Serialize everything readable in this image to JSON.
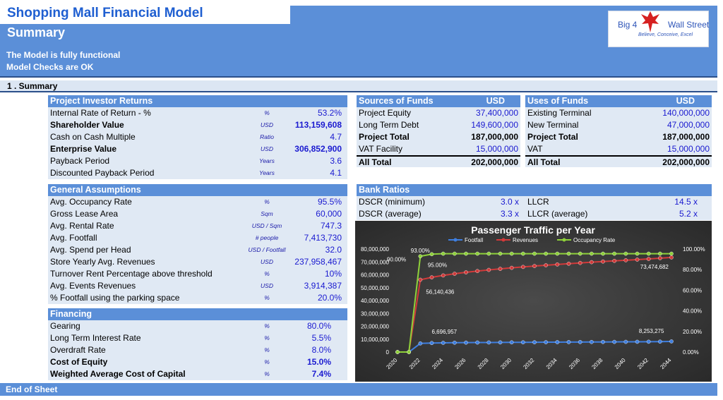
{
  "header": {
    "title": "Shopping Mall Financial Model",
    "subtitle": "Summary",
    "status_line1": "The Model is fully functional",
    "status_line2": "Model Checks are OK",
    "logo_left": "Big 4",
    "logo_right": "Wall Street",
    "logo_tagline": "Believe, Conceive, Excel"
  },
  "section": {
    "title": "1 . Summary"
  },
  "investor_returns": {
    "title": "Project Investor Returns",
    "rows": [
      {
        "label": "Internal Rate of Return - %",
        "unit": "%",
        "value": "53.2%",
        "bold": false
      },
      {
        "label": "Shareholder Value",
        "unit": "USD",
        "value": "113,159,608",
        "bold": true
      },
      {
        "label": "Cash on Cash Multiple",
        "unit": "Ratio",
        "value": "4.7",
        "bold": false
      },
      {
        "label": "Enterprise Value",
        "unit": "USD",
        "value": "306,852,900",
        "bold": true
      },
      {
        "label": "Payback Period",
        "unit": "Years",
        "value": "3.6",
        "bold": false
      },
      {
        "label": "Discounted Payback Period",
        "unit": "Years",
        "value": "4.1",
        "bold": false
      }
    ]
  },
  "general_assumptions": {
    "title": "General Assumptions",
    "rows": [
      {
        "label": "Avg. Occupancy Rate",
        "unit": "%",
        "value": "95.5%"
      },
      {
        "label": "Gross Lease Area",
        "unit": "Sqm",
        "value": "60,000"
      },
      {
        "label": "Avg. Rental Rate",
        "unit": "USD / Sqm",
        "value": "747.3"
      },
      {
        "label": "Avg. Footfall",
        "unit": "# people",
        "value": "7,413,730"
      },
      {
        "label": "Avg. Spend per Head",
        "unit": "USD / Footfall",
        "value": "32.0"
      },
      {
        "label": "Store Yearly Avg. Revenues",
        "unit": "USD",
        "value": "237,958,467"
      },
      {
        "label": "Turnover Rent Percentage above threshold",
        "unit": "%",
        "value": "10%"
      },
      {
        "label": "Avg. Events Revenues",
        "unit": "USD",
        "value": "3,914,387"
      },
      {
        "label": "% Footfall using the parking space",
        "unit": "%",
        "value": "20.0%"
      }
    ]
  },
  "financing": {
    "title": "Financing",
    "rows": [
      {
        "label": "Gearing",
        "unit": "%",
        "value": "80.0%",
        "bold": false
      },
      {
        "label": "Long Term Interest Rate",
        "unit": "%",
        "value": "5.5%",
        "bold": false
      },
      {
        "label": "Overdraft Rate",
        "unit": "%",
        "value": "8.0%",
        "bold": false
      },
      {
        "label": "Cost of Equity",
        "unit": "%",
        "value": "15.0%",
        "bold": true
      },
      {
        "label": "Weighted Average Cost of Capital",
        "unit": "%",
        "value": "7.4%",
        "bold": true
      }
    ]
  },
  "sources": {
    "title": "Sources of Funds",
    "currency": "USD",
    "rows": [
      {
        "label": "Project Equity",
        "value": "37,400,000",
        "bold": false
      },
      {
        "label": "Long Term Debt",
        "value": "149,600,000",
        "bold": false
      },
      {
        "label": "Project Total",
        "value": "187,000,000",
        "bold": true
      },
      {
        "label": "VAT Facility",
        "value": "15,000,000",
        "bold": false
      }
    ],
    "total_label": "All Total",
    "total_value": "202,000,000"
  },
  "uses": {
    "title": "Uses of Funds",
    "currency": "USD",
    "rows": [
      {
        "label": "Existing Terminal",
        "value": "140,000,000",
        "bold": false
      },
      {
        "label": "New Terminal",
        "value": "47,000,000",
        "bold": false
      },
      {
        "label": "Project Total",
        "value": "187,000,000",
        "bold": true
      },
      {
        "label": "VAT",
        "value": "15,000,000",
        "bold": false
      }
    ],
    "total_label": "All Total",
    "total_value": "202,000,000"
  },
  "bank_ratios": {
    "title": "Bank Ratios",
    "rows": [
      {
        "label": "DSCR (minimum)",
        "value": "3.0 x",
        "label2": "LLCR",
        "value2": "14.5 x"
      },
      {
        "label": "DSCR (average)",
        "value": "3.3 x",
        "label2": "LLCR (average)",
        "value2": "5.2 x"
      }
    ]
  },
  "chart_data": {
    "type": "line",
    "title": "Passenger Traffic per Year",
    "x": [
      2020,
      2021,
      2022,
      2023,
      2024,
      2025,
      2026,
      2027,
      2028,
      2029,
      2030,
      2031,
      2032,
      2033,
      2034,
      2035,
      2036,
      2037,
      2038,
      2039,
      2040,
      2041,
      2042,
      2043,
      2044
    ],
    "x_tick_labels": [
      "2020",
      "2022",
      "2024",
      "2026",
      "2028",
      "2030",
      "2032",
      "2034",
      "2036",
      "2038",
      "2040",
      "2042",
      "2044"
    ],
    "y_left_ticks": [
      "0",
      "10,000,000",
      "20,000,000",
      "30,000,000",
      "40,000,000",
      "50,000,000",
      "60,000,000",
      "70,000,000",
      "80,000,000"
    ],
    "y_right_ticks": [
      "0.00%",
      "20.00%",
      "40.00%",
      "60.00%",
      "80.00%",
      "100.00%"
    ],
    "ylim_left": [
      0,
      80000000
    ],
    "ylim_right": [
      0,
      1.0
    ],
    "legend_position": "top",
    "series": [
      {
        "name": "Footfall",
        "axis": "left",
        "color": "#3f7fe0",
        "values": [
          0,
          0,
          6696957,
          7000000,
          7150000,
          7250000,
          7320000,
          7380000,
          7430000,
          7480000,
          7520000,
          7560000,
          7600000,
          7640000,
          7680000,
          7720000,
          7760000,
          7800000,
          7840000,
          7880000,
          7920000,
          7970000,
          8020000,
          8100000,
          8253275
        ]
      },
      {
        "name": "Revenues",
        "axis": "left",
        "color": "#d23a3a",
        "values": [
          0,
          0,
          56140436,
          58000000,
          59500000,
          60800000,
          61900000,
          62900000,
          63800000,
          64600000,
          65400000,
          66100000,
          66800000,
          67400000,
          68000000,
          68600000,
          69200000,
          69800000,
          70300000,
          70800000,
          71300000,
          71800000,
          72300000,
          72900000,
          73474682
        ]
      },
      {
        "name": "Occupancy Rate",
        "axis": "right",
        "color": "#8fd13a",
        "values": [
          0,
          0,
          0.93,
          0.95,
          0.955,
          0.955,
          0.955,
          0.955,
          0.955,
          0.955,
          0.955,
          0.955,
          0.955,
          0.955,
          0.955,
          0.955,
          0.955,
          0.955,
          0.955,
          0.955,
          0.955,
          0.955,
          0.955,
          0.955,
          0.955
        ]
      }
    ],
    "data_labels": [
      "90.00%",
      "93.00%",
      "95.00%",
      "56,140,436",
      "73,474,682",
      "6,696,957",
      "8,253,275"
    ]
  },
  "footer": {
    "end_label": "End of Sheet"
  }
}
